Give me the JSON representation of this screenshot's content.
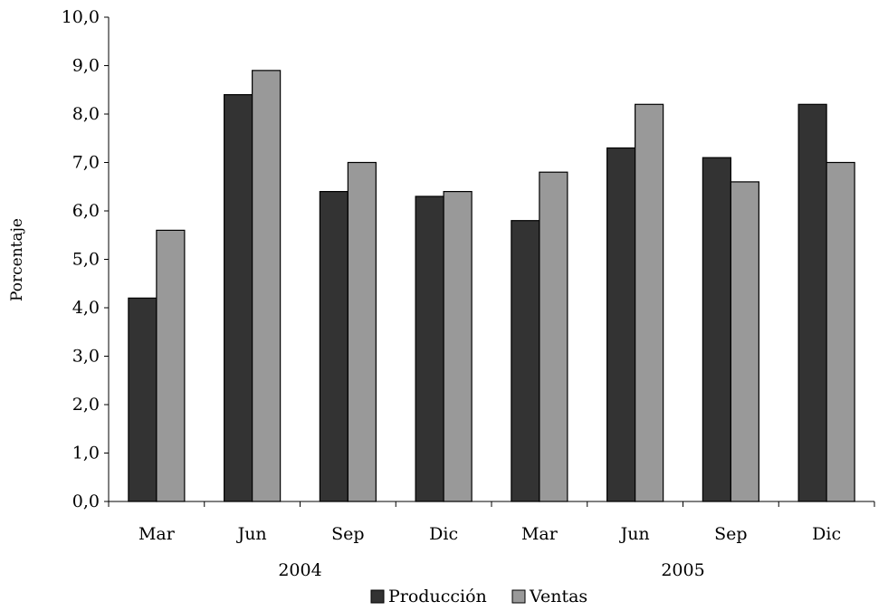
{
  "chart_data": {
    "type": "bar",
    "title": "",
    "xlabel": "",
    "ylabel": "Porcentaje",
    "ylim": [
      0,
      10
    ],
    "y_ticks": [
      "0,0",
      "1,0",
      "2,0",
      "3,0",
      "4,0",
      "5,0",
      "6,0",
      "7,0",
      "8,0",
      "9,0",
      "10,0"
    ],
    "categories": [
      "Mar",
      "Jun",
      "Sep",
      "Dic",
      "Mar",
      "Jun",
      "Sep",
      "Dic"
    ],
    "groups": [
      {
        "label": "2004",
        "categories": [
          "Mar",
          "Jun",
          "Sep",
          "Dic"
        ]
      },
      {
        "label": "2005",
        "categories": [
          "Mar",
          "Jun",
          "Sep",
          "Dic"
        ]
      }
    ],
    "series": [
      {
        "name": "Producción",
        "color": "#333333",
        "values": [
          4.2,
          8.4,
          6.4,
          6.3,
          5.8,
          7.3,
          7.1,
          8.2
        ]
      },
      {
        "name": "Ventas",
        "color": "#999999",
        "values": [
          5.6,
          8.9,
          7.0,
          6.4,
          6.8,
          8.2,
          6.6,
          7.0
        ]
      }
    ],
    "grid": false,
    "legend_position": "bottom"
  }
}
